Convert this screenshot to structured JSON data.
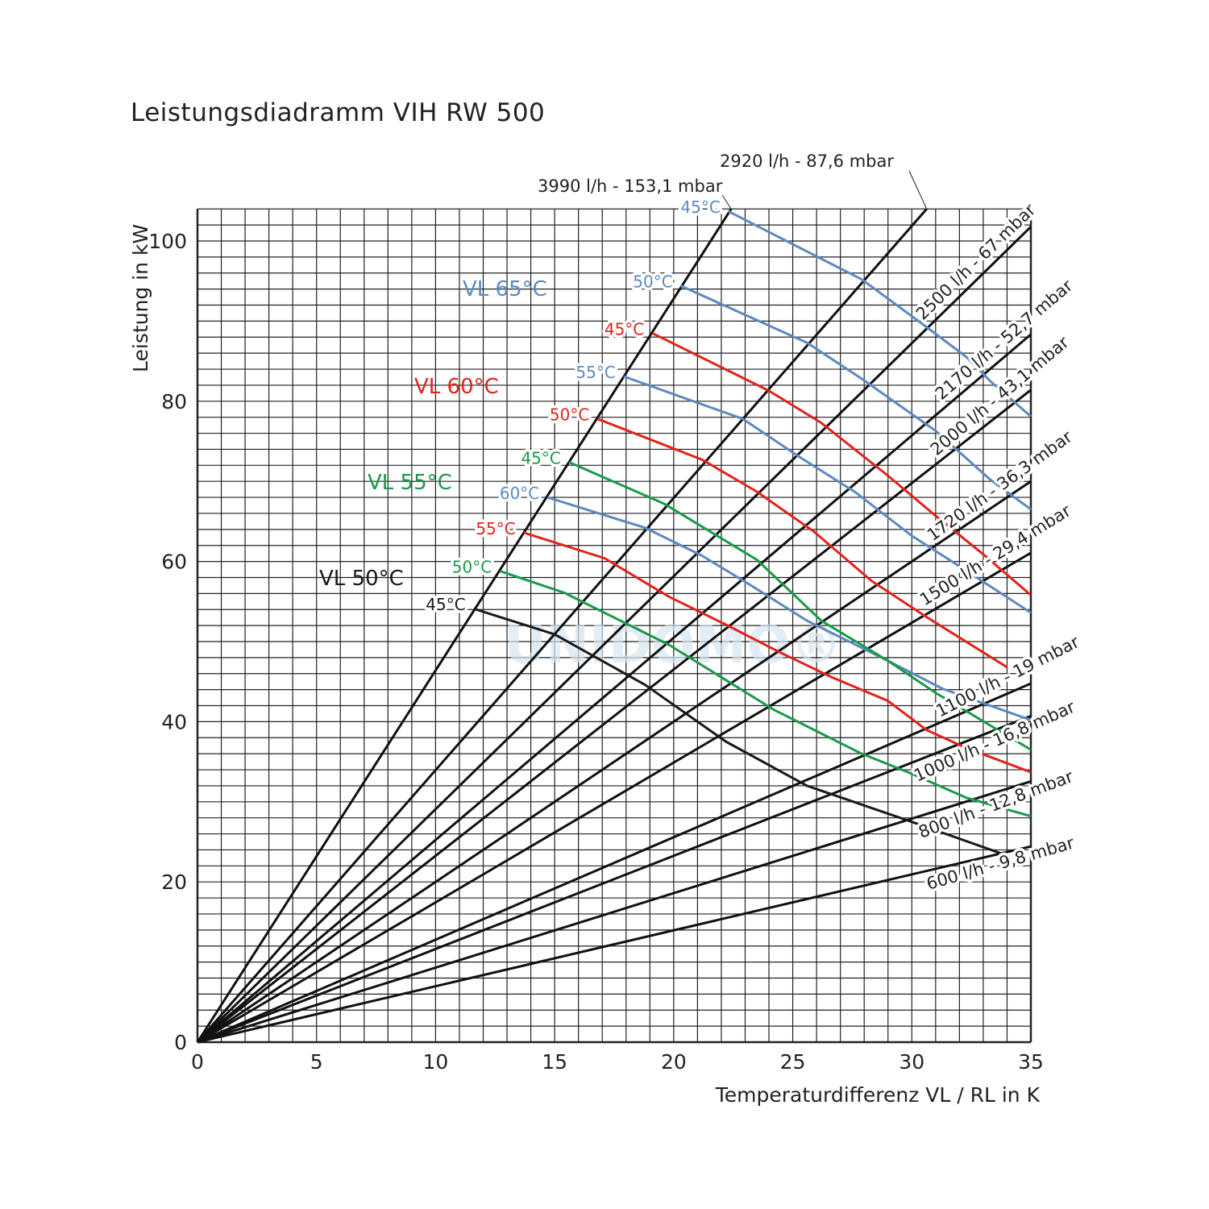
{
  "chart_data": {
    "type": "line",
    "title": "Leistungsdiadramm VIH RW 500",
    "xlabel": "Temperaturdifferenz VL / RL in K",
    "ylabel": "Leistung in kW",
    "xlim": [
      0,
      35
    ],
    "ylim": [
      0,
      104
    ],
    "xticks": [
      0,
      5,
      10,
      15,
      20,
      25,
      30,
      35
    ],
    "yticks": [
      0,
      20,
      40,
      60,
      80,
      100
    ],
    "grid": true,
    "watermark": "UNIDOMO®",
    "flow_lines": [
      {
        "label": "3990 l/h - 153,1 mbar",
        "slope_kw_per_k": 4.64
      },
      {
        "label": "2920 l/h - 87,6 mbar",
        "slope_kw_per_k": 3.396
      },
      {
        "label": "2500 l/h - 67 mbar",
        "slope_kw_per_k": 2.908
      },
      {
        "label": "2170 l/h - 52,7 mbar",
        "slope_kw_per_k": 2.524
      },
      {
        "label": "2000 l/h - 43,1 mbar",
        "slope_kw_per_k": 2.326
      },
      {
        "label": "1720 l/h - 36,3 mbar",
        "slope_kw_per_k": 2.0
      },
      {
        "label": "1500 l/h - 29,4 mbar",
        "slope_kw_per_k": 1.745
      },
      {
        "label": "1100 l/h - 19 mbar",
        "slope_kw_per_k": 1.279
      },
      {
        "label": "1000 l/h - 16,8 mbar",
        "slope_kw_per_k": 1.163
      },
      {
        "label": "800 l/h - 12,8 mbar",
        "slope_kw_per_k": 0.93
      },
      {
        "label": "600 l/h - 9,8 mbar",
        "slope_kw_per_k": 0.698
      }
    ],
    "groups": [
      {
        "name": "VL 65°C",
        "color": "#5b8ac0",
        "series": [
          {
            "name": "45°C",
            "points": [
              [
                22.3,
                103.7
              ],
              [
                27.9,
                95.2
              ],
              [
                30.6,
                89.3
              ],
              [
                32.3,
                85.5
              ],
              [
                33.3,
                82.5
              ],
              [
                35,
                78.1
              ]
            ]
          },
          {
            "name": "50°C",
            "points": [
              [
                20.3,
                94.4
              ],
              [
                25.6,
                87.3
              ],
              [
                27.9,
                82.8
              ],
              [
                31,
                76.3
              ],
              [
                33.3,
                70.2
              ],
              [
                35,
                66.5
              ]
            ]
          },
          {
            "name": "55°C",
            "points": [
              [
                17.9,
                83.1
              ],
              [
                22.9,
                77.8
              ],
              [
                25.2,
                73.2
              ],
              [
                27.6,
                68.7
              ],
              [
                30,
                63.2
              ],
              [
                32,
                59.4
              ],
              [
                35,
                53.6
              ]
            ]
          },
          {
            "name": "60°C",
            "points": [
              [
                14.7,
                68
              ],
              [
                18.8,
                64.2
              ],
              [
                21.2,
                60.7
              ],
              [
                23.2,
                57.1
              ],
              [
                25.6,
                52.6
              ],
              [
                29,
                47.6
              ],
              [
                31.3,
                44.1
              ],
              [
                35,
                40.2
              ]
            ]
          }
        ]
      },
      {
        "name": "VL 60°C",
        "color": "#e2231a",
        "series": [
          {
            "name": "45°C",
            "points": [
              [
                19.1,
                88.5
              ],
              [
                24,
                81.3
              ],
              [
                26.2,
                77.3
              ],
              [
                29,
                70.7
              ],
              [
                31,
                65.7
              ],
              [
                33,
                60.9
              ],
              [
                35,
                55.8
              ]
            ]
          },
          {
            "name": "50°C",
            "points": [
              [
                16.8,
                77.8
              ],
              [
                21.2,
                72.7
              ],
              [
                23.5,
                68.7
              ],
              [
                25.9,
                63.7
              ],
              [
                28.3,
                57.6
              ],
              [
                30.6,
                53.1
              ],
              [
                34,
                46.8
              ]
            ]
          },
          {
            "name": "55°C",
            "points": [
              [
                13.7,
                63.6
              ],
              [
                17.1,
                60.4
              ],
              [
                19.8,
                55.6
              ],
              [
                22.2,
                52.1
              ],
              [
                24.5,
                48.6
              ],
              [
                26.6,
                45.6
              ],
              [
                29,
                42.6
              ],
              [
                30.6,
                39
              ],
              [
                32.3,
                36.7
              ],
              [
                35,
                33.7
              ]
            ]
          }
        ]
      },
      {
        "name": "VL 55°C",
        "color": "#1a9a4a",
        "series": [
          {
            "name": "45°C",
            "points": [
              [
                15.6,
                72.4
              ],
              [
                19.6,
                67.2
              ],
              [
                23.5,
                60.2
              ],
              [
                26.2,
                52.6
              ],
              [
                29,
                47.6
              ],
              [
                31,
                43.6
              ],
              [
                35,
                36.5
              ]
            ]
          },
          {
            "name": "50°C",
            "points": [
              [
                12.7,
                58.8
              ],
              [
                15.4,
                56.1
              ],
              [
                19.8,
                49.6
              ],
              [
                24.2,
                41.5
              ],
              [
                27.9,
                36
              ],
              [
                30,
                33.5
              ],
              [
                32.3,
                30.5
              ],
              [
                35,
                28.2
              ]
            ]
          }
        ]
      },
      {
        "name": "VL 50°C",
        "color": "#1a1a1a",
        "series": [
          {
            "name": "45°C",
            "points": [
              [
                11.6,
                54.1
              ],
              [
                15,
                50.9
              ],
              [
                18.8,
                44.6
              ],
              [
                22.2,
                37.5
              ],
              [
                25.6,
                32
              ],
              [
                30,
                27.5
              ],
              [
                33.9,
                23.4
              ]
            ]
          }
        ]
      }
    ]
  }
}
